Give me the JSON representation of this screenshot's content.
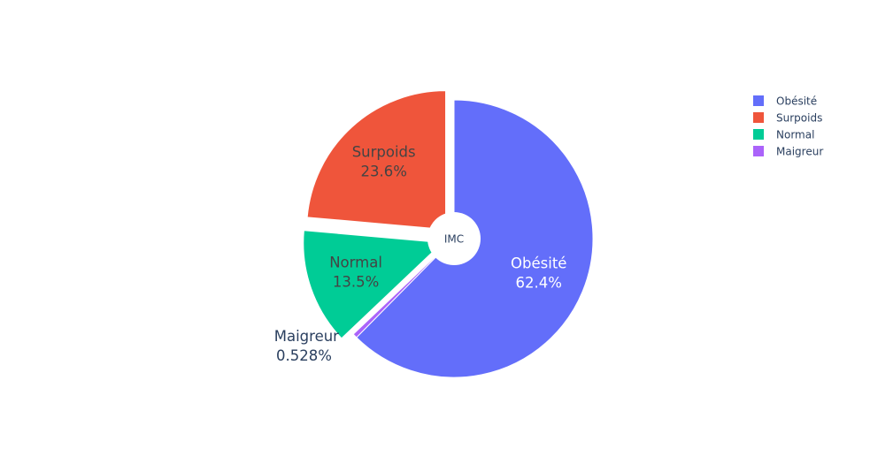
{
  "chart_data": {
    "type": "pie",
    "center_label": "IMC",
    "slices": [
      {
        "label": "Obésité",
        "value": 62.4,
        "value_label": "62.4%",
        "color": "#636efa",
        "pulled": false,
        "text_position": "inside"
      },
      {
        "label": "Maigreur",
        "value": 0.528,
        "value_label": "0.528%",
        "color": "#ab63fa",
        "pulled": false,
        "text_position": "outside"
      },
      {
        "label": "Normal",
        "value": 13.5,
        "value_label": "13.5%",
        "color": "#00cc96",
        "pulled": true,
        "text_position": "inside"
      },
      {
        "label": "Surpoids",
        "value": 23.6,
        "value_label": "23.6%",
        "color": "#ef553b",
        "pulled": true,
        "text_position": "inside"
      }
    ],
    "legend": {
      "placement": "top-right",
      "items": [
        {
          "label": "Obésité",
          "color": "#636efa"
        },
        {
          "label": "Surpoids",
          "color": "#ef553b"
        },
        {
          "label": "Normal",
          "color": "#00cc96"
        },
        {
          "label": "Maigreur",
          "color": "#ab63fa"
        }
      ]
    }
  }
}
